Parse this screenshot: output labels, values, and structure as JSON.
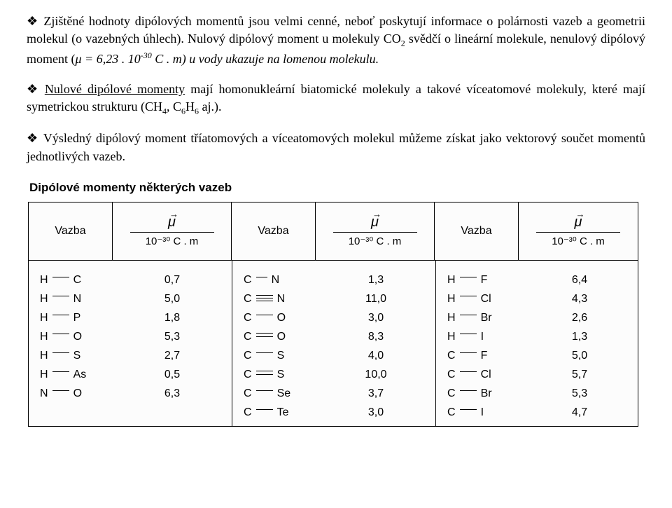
{
  "paragraphs": {
    "p1_lead": "Zjištěné hodnoty dipólových momentů jsou velmi cenné, neboť poskytují informace o polárnosti vazeb a geometrii molekul (o vazebných úhlech). Nulový dipólový moment u molekuly CO",
    "p1_sub": "2",
    "p1_mid": " svědčí o lineární molekule, nenulový dipólový moment (",
    "p1_mu": "μ",
    "p1_eq": " = 6,23 . 10",
    "p1_exp": "-30",
    "p1_tail": " C . m) u vody ukazuje na lomenou molekulu.",
    "p2_u": "Nulové dipólové momenty",
    "p2_rest": " mají homonukleární biatomické molekuly a takové víceatomové molekuly, které mají symetrickou strukturu (CH",
    "p2_s1": "4",
    "p2_c": ", C",
    "p2_s2": "6",
    "p2_h": "H",
    "p2_s3": "6",
    "p2_end": " aj.).",
    "p3": "Výsledný dipólový moment tříatomových a víceatomových molekul můžeme získat jako vektorový součet momentů jednotlivých vazeb."
  },
  "table": {
    "title": "Dipólové momenty některých vazeb",
    "header_vazba": "Vazba",
    "header_mu": "μ",
    "header_unit_num": "10⁻³⁰ C . m",
    "groups": [
      {
        "rows": [
          {
            "a": "H",
            "b": "C",
            "bond": "single",
            "val": "0,7"
          },
          {
            "a": "H",
            "b": "N",
            "bond": "single",
            "val": "5,0"
          },
          {
            "a": "H",
            "b": "P",
            "bond": "single",
            "val": "1,8"
          },
          {
            "a": "H",
            "b": "O",
            "bond": "single",
            "val": "5,3"
          },
          {
            "a": "H",
            "b": "S",
            "bond": "single",
            "val": "2,7"
          },
          {
            "a": "H",
            "b": "As",
            "bond": "single",
            "val": "0,5"
          },
          {
            "a": "N",
            "b": "O",
            "bond": "single",
            "val": "6,3"
          }
        ]
      },
      {
        "rows": [
          {
            "a": "C",
            "b": "N",
            "bond": "single-short",
            "val": "1,3"
          },
          {
            "a": "C",
            "b": "N",
            "bond": "triple",
            "val": "11,0"
          },
          {
            "a": "C",
            "b": "O",
            "bond": "single",
            "val": "3,0"
          },
          {
            "a": "C",
            "b": "O",
            "bond": "double",
            "val": "8,3"
          },
          {
            "a": "C",
            "b": "S",
            "bond": "single",
            "val": "4,0"
          },
          {
            "a": "C",
            "b": "S",
            "bond": "double",
            "val": "10,0"
          },
          {
            "a": "C",
            "b": "Se",
            "bond": "single",
            "val": "3,7"
          },
          {
            "a": "C",
            "b": "Te",
            "bond": "single",
            "val": "3,0"
          }
        ]
      },
      {
        "rows": [
          {
            "a": "H",
            "b": "F",
            "bond": "single",
            "val": "6,4"
          },
          {
            "a": "H",
            "b": "Cl",
            "bond": "single",
            "val": "4,3"
          },
          {
            "a": "H",
            "b": "Br",
            "bond": "single",
            "val": "2,6"
          },
          {
            "a": "H",
            "b": "I",
            "bond": "single",
            "val": "1,3"
          },
          {
            "a": "C",
            "b": "F",
            "bond": "single",
            "val": "5,0"
          },
          {
            "a": "C",
            "b": "Cl",
            "bond": "single",
            "val": "5,7"
          },
          {
            "a": "C",
            "b": "Br",
            "bond": "single",
            "val": "5,3"
          },
          {
            "a": "C",
            "b": "I",
            "bond": "single",
            "val": "4,7"
          }
        ]
      }
    ]
  }
}
